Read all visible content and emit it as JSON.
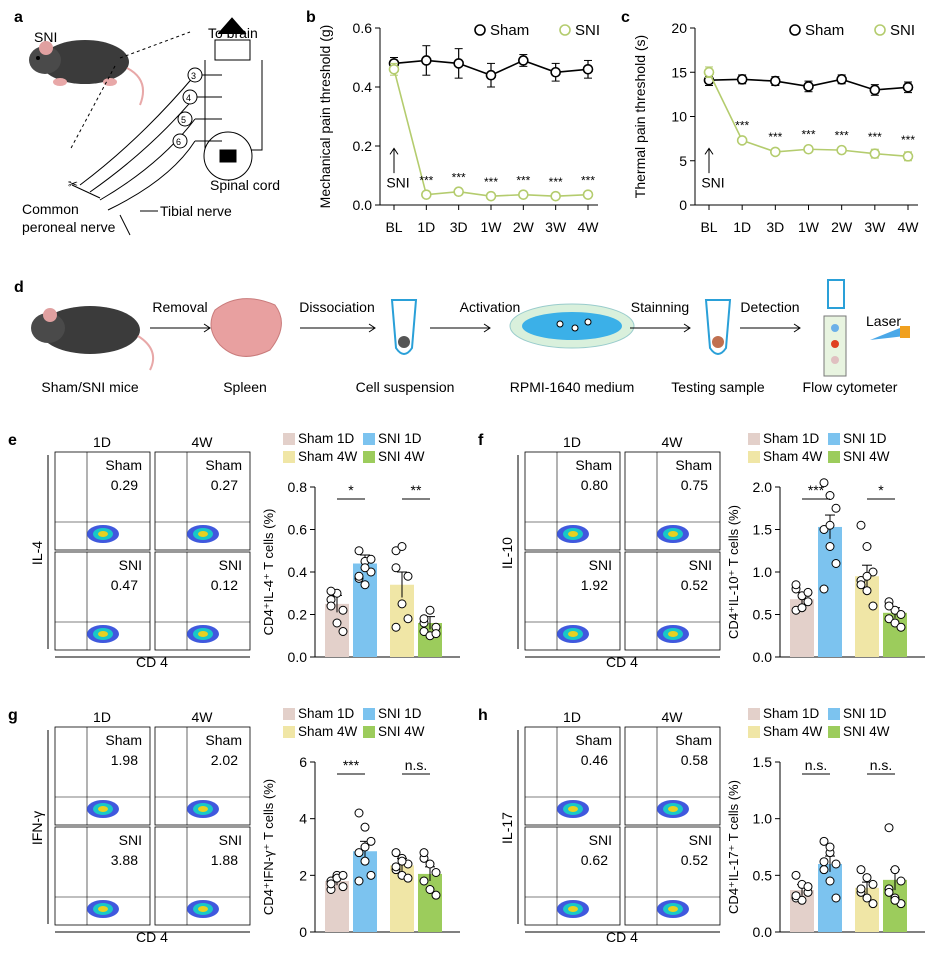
{
  "panel_letters": {
    "a": "a",
    "b": "b",
    "c": "c",
    "d": "d",
    "e": "e",
    "f": "f",
    "g": "g",
    "h": "h"
  },
  "panel_a": {
    "mouse_label": "SNI",
    "to_brain": "To brain",
    "spinal_cord": "Spinal cord",
    "common_peroneal_line1": "Common",
    "common_peroneal_line2": "peroneal nerve",
    "tibial_nerve": "Tibial nerve",
    "root_numbers": [
      "3",
      "4",
      "5",
      "6"
    ]
  },
  "arrow_labels": {
    "sni": "SNI"
  },
  "panel_d": {
    "steps": [
      "Removal",
      "Dissociation",
      "Activation",
      "Stainning",
      "Detection"
    ],
    "items": [
      "Sham/SNI mice",
      "Spleen",
      "Cell suspension",
      "RPMI-1640 medium",
      "Testing sample",
      "Flow cytometer"
    ],
    "laser": "Laser"
  },
  "flow_panels": [
    {
      "letter": "e",
      "ylabel": "IL-4",
      "xlabel": "CD 4",
      "col_labels": [
        "1D",
        "4W"
      ],
      "row_labels": [
        "Sham",
        "Sham",
        "SNI",
        "SNI"
      ],
      "values": [
        "0.29",
        "0.27",
        "0.47",
        "0.12"
      ]
    },
    {
      "letter": "f",
      "ylabel": "IL-10",
      "xlabel": "CD 4",
      "col_labels": [
        "1D",
        "4W"
      ],
      "row_labels": [
        "Sham",
        "Sham",
        "SNI",
        "SNI"
      ],
      "values": [
        "0.80",
        "0.75",
        "1.92",
        "0.52"
      ]
    },
    {
      "letter": "g",
      "ylabel": "IFN-γ",
      "xlabel": "CD 4",
      "col_labels": [
        "1D",
        "4W"
      ],
      "row_labels": [
        "Sham",
        "Sham",
        "SNI",
        "SNI"
      ],
      "values": [
        "1.98",
        "2.02",
        "3.88",
        "1.88"
      ]
    },
    {
      "letter": "h",
      "ylabel": "IL-17",
      "xlabel": "CD 4",
      "col_labels": [
        "1D",
        "4W"
      ],
      "row_labels": [
        "Sham",
        "Sham",
        "SNI",
        "SNI"
      ],
      "values": [
        "0.46",
        "0.58",
        "0.62",
        "0.52"
      ]
    }
  ],
  "colors": {
    "sham1d": "#e3d0ca",
    "sni1d": "#7cc3ef",
    "sham4w": "#f0e6a6",
    "sni4w": "#9ccc5c",
    "sham_line": "#000000",
    "sni_line": "#b4cc6e"
  },
  "chart_data": [
    {
      "id": "b",
      "type": "line",
      "ylabel": "Mechanical pain threshold (g)",
      "x": [
        "BL",
        "1D",
        "3D",
        "1W",
        "2W",
        "3W",
        "4W"
      ],
      "ylim": [
        0,
        0.6
      ],
      "yticks": [
        "0.0",
        "0.2",
        "0.4",
        "0.6"
      ],
      "legend": [
        "Sham",
        "SNI"
      ],
      "series": [
        {
          "name": "Sham",
          "values": [
            0.48,
            0.49,
            0.48,
            0.44,
            0.49,
            0.45,
            0.46
          ],
          "err": [
            0.02,
            0.05,
            0.05,
            0.04,
            0.02,
            0.03,
            0.03
          ]
        },
        {
          "name": "SNI",
          "values": [
            0.46,
            0.035,
            0.045,
            0.03,
            0.035,
            0.03,
            0.035
          ],
          "err": [
            0.02,
            0.008,
            0.008,
            0.008,
            0.008,
            0.008,
            0.008
          ]
        }
      ],
      "stars": [
        "",
        "***",
        "***",
        "***",
        "***",
        "***",
        "***"
      ],
      "annotation": "SNI"
    },
    {
      "id": "c",
      "type": "line",
      "ylabel": "Thermal pain threshold (s)",
      "x": [
        "BL",
        "1D",
        "3D",
        "1W",
        "2W",
        "3W",
        "4W"
      ],
      "ylim": [
        0,
        20
      ],
      "yticks": [
        "0",
        "5",
        "10",
        "15",
        "20"
      ],
      "legend": [
        "Sham",
        "SNI"
      ],
      "series": [
        {
          "name": "Sham",
          "values": [
            14.1,
            14.2,
            14.0,
            13.4,
            14.2,
            13.0,
            13.3
          ],
          "err": [
            0.6,
            0.5,
            0.5,
            0.6,
            0.5,
            0.6,
            0.6
          ]
        },
        {
          "name": "SNI",
          "values": [
            15.0,
            7.3,
            6.0,
            6.3,
            6.2,
            5.8,
            5.5
          ],
          "err": [
            0.6,
            0.3,
            0.3,
            0.3,
            0.3,
            0.5,
            0.5
          ]
        }
      ],
      "stars": [
        "",
        "***",
        "***",
        "***",
        "***",
        "***",
        "***"
      ],
      "annotation": "SNI"
    },
    {
      "id": "e",
      "type": "bar",
      "ylabel": "CD4⁺IL-4⁺ T cells (%)",
      "categories": [
        "Sham 1D",
        "SNI 1D",
        "Sham 4W",
        "SNI 4W"
      ],
      "ylim": [
        0,
        0.8
      ],
      "yticks": [
        "0.0",
        "0.2",
        "0.4",
        "0.6",
        "0.8"
      ],
      "values": [
        0.25,
        0.44,
        0.34,
        0.16
      ],
      "err": [
        0.04,
        0.04,
        0.06,
        0.03
      ],
      "points": [
        [
          0.27,
          0.3,
          0.22,
          0.24,
          0.16,
          0.12,
          0.31
        ],
        [
          0.5,
          0.45,
          0.4,
          0.37,
          0.42,
          0.46,
          0.38,
          0.34
        ],
        [
          0.5,
          0.52,
          0.38,
          0.42,
          0.25,
          0.18,
          0.14
        ],
        [
          0.16,
          0.22,
          0.14,
          0.12,
          0.1,
          0.11,
          0.18
        ]
      ],
      "sig": [
        "*",
        "**"
      ]
    },
    {
      "id": "f",
      "type": "bar",
      "ylabel": "CD4⁺IL-10⁺ T cells (%)",
      "categories": [
        "Sham 1D",
        "SNI 1D",
        "Sham 4W",
        "SNI 4W"
      ],
      "ylim": [
        0,
        2.0
      ],
      "yticks": [
        "0.0",
        "0.5",
        "1.0",
        "1.5",
        "2.0"
      ],
      "values": [
        0.68,
        1.53,
        0.95,
        0.52
      ],
      "err": [
        0.08,
        0.14,
        0.13,
        0.06
      ],
      "points": [
        [
          0.8,
          0.72,
          0.65,
          0.55,
          0.58,
          0.76,
          0.85
        ],
        [
          2.05,
          1.9,
          1.75,
          1.5,
          1.3,
          1.1,
          0.8,
          1.55
        ],
        [
          1.55,
          1.3,
          1.0,
          0.9,
          0.78,
          0.6,
          0.85,
          0.95
        ],
        [
          0.65,
          0.55,
          0.5,
          0.45,
          0.4,
          0.35,
          0.6
        ]
      ],
      "sig": [
        "***",
        "*"
      ]
    },
    {
      "id": "g",
      "type": "bar",
      "ylabel": "CD4⁺IFN-γ⁺ T cells (%)",
      "categories": [
        "Sham 1D",
        "SNI 1D",
        "Sham 4W",
        "SNI 4W"
      ],
      "ylim": [
        0,
        6
      ],
      "yticks": [
        "0",
        "2",
        "4",
        "6"
      ],
      "values": [
        1.8,
        2.85,
        2.35,
        2.05
      ],
      "err": [
        0.15,
        0.35,
        0.25,
        0.25
      ],
      "points": [
        [
          1.8,
          2.0,
          1.6,
          1.5,
          1.9,
          2.0,
          1.7
        ],
        [
          4.2,
          3.7,
          3.2,
          2.8,
          2.5,
          2.0,
          1.8,
          3.0
        ],
        [
          2.8,
          2.6,
          2.4,
          2.2,
          2.0,
          1.9,
          2.3,
          2.5
        ],
        [
          2.6,
          2.4,
          2.1,
          1.8,
          1.5,
          1.3,
          2.8
        ]
      ],
      "sig": [
        "***",
        "n.s."
      ]
    },
    {
      "id": "h",
      "type": "bar",
      "ylabel": "CD4⁺IL-17⁺ T cells (%)",
      "categories": [
        "Sham 1D",
        "SNI 1D",
        "Sham 4W",
        "SNI 4W"
      ],
      "ylim": [
        0,
        1.5
      ],
      "yticks": [
        "0.0",
        "0.5",
        "1.0",
        "1.5"
      ],
      "values": [
        0.37,
        0.6,
        0.39,
        0.46
      ],
      "err": [
        0.05,
        0.07,
        0.05,
        0.09
      ],
      "points": [
        [
          0.5,
          0.42,
          0.35,
          0.3,
          0.28,
          0.4,
          0.32
        ],
        [
          0.8,
          0.7,
          0.6,
          0.55,
          0.45,
          0.3,
          0.62,
          0.75
        ],
        [
          0.55,
          0.48,
          0.42,
          0.35,
          0.3,
          0.25,
          0.38
        ],
        [
          0.92,
          0.55,
          0.45,
          0.38,
          0.3,
          0.25,
          0.35,
          0.28
        ]
      ],
      "sig": [
        "n.s.",
        "n.s."
      ]
    }
  ]
}
